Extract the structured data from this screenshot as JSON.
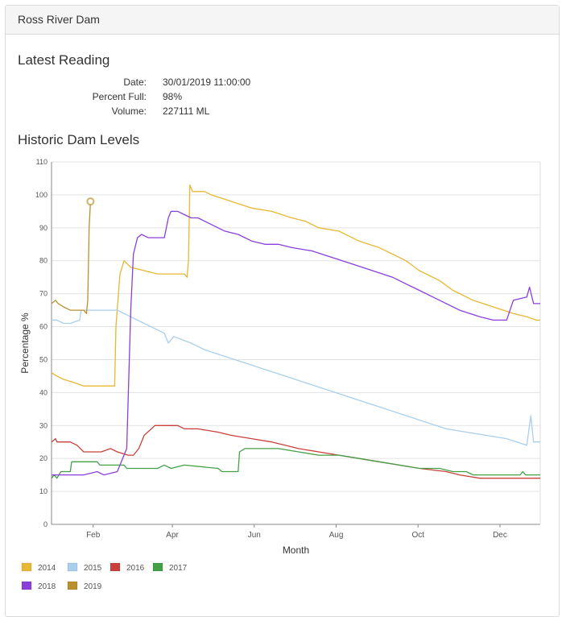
{
  "panel": {
    "title": "Ross River Dam"
  },
  "latest": {
    "heading": "Latest Reading",
    "rows": [
      {
        "label": "Date:",
        "value": "30/01/2019 11:00:00"
      },
      {
        "label": "Percent Full:",
        "value": "98%"
      },
      {
        "label": "Volume:",
        "value": "227111 ML"
      }
    ]
  },
  "historic": {
    "heading": "Historic Dam Levels"
  },
  "chart_data": {
    "type": "line",
    "xlabel": "Month",
    "ylabel": "Percentage %",
    "ylim": [
      0,
      110
    ],
    "xlim": [
      1,
      365
    ],
    "y_ticks": [
      0,
      10,
      20,
      30,
      40,
      50,
      60,
      70,
      80,
      90,
      100,
      110
    ],
    "x_ticks": [
      {
        "label": "Feb",
        "day": 32
      },
      {
        "label": "Apr",
        "day": 91
      },
      {
        "label": "Jun",
        "day": 152
      },
      {
        "label": "Aug",
        "day": 213
      },
      {
        "label": "Oct",
        "day": 274
      },
      {
        "label": "Dec",
        "day": 335
      }
    ],
    "grid": true,
    "legend": "bottom",
    "series": [
      {
        "name": "2014",
        "color": "#e8b731",
        "points": [
          [
            1,
            46
          ],
          [
            5,
            45
          ],
          [
            10,
            44
          ],
          [
            18,
            43
          ],
          [
            25,
            42
          ],
          [
            30,
            42
          ],
          [
            40,
            42
          ],
          [
            48,
            42
          ],
          [
            49,
            60
          ],
          [
            52,
            76
          ],
          [
            55,
            80
          ],
          [
            60,
            78
          ],
          [
            70,
            77
          ],
          [
            80,
            76
          ],
          [
            95,
            76
          ],
          [
            100,
            76
          ],
          [
            102,
            75
          ],
          [
            103,
            80
          ],
          [
            104,
            103
          ],
          [
            106,
            101
          ],
          [
            115,
            101
          ],
          [
            120,
            100
          ],
          [
            135,
            98
          ],
          [
            150,
            96
          ],
          [
            165,
            95
          ],
          [
            180,
            93
          ],
          [
            190,
            92
          ],
          [
            200,
            90
          ],
          [
            215,
            89
          ],
          [
            230,
            86
          ],
          [
            245,
            84
          ],
          [
            255,
            82
          ],
          [
            265,
            80
          ],
          [
            275,
            77
          ],
          [
            290,
            74
          ],
          [
            300,
            71
          ],
          [
            315,
            68
          ],
          [
            330,
            66
          ],
          [
            345,
            64
          ],
          [
            355,
            63
          ],
          [
            362,
            62
          ],
          [
            365,
            62
          ]
        ]
      },
      {
        "name": "2015",
        "color": "#a8cfeb",
        "points": [
          [
            1,
            62
          ],
          [
            5,
            62
          ],
          [
            10,
            61
          ],
          [
            15,
            61
          ],
          [
            22,
            62
          ],
          [
            23,
            65
          ],
          [
            30,
            65
          ],
          [
            40,
            65
          ],
          [
            50,
            65
          ],
          [
            55,
            64
          ],
          [
            60,
            63
          ],
          [
            70,
            61
          ],
          [
            80,
            59
          ],
          [
            85,
            58
          ],
          [
            88,
            55
          ],
          [
            92,
            57
          ],
          [
            105,
            55
          ],
          [
            115,
            53
          ],
          [
            130,
            51
          ],
          [
            145,
            49
          ],
          [
            160,
            47
          ],
          [
            175,
            45
          ],
          [
            190,
            43
          ],
          [
            205,
            41
          ],
          [
            220,
            39
          ],
          [
            235,
            37
          ],
          [
            250,
            35
          ],
          [
            265,
            33
          ],
          [
            280,
            31
          ],
          [
            295,
            29
          ],
          [
            310,
            28
          ],
          [
            325,
            27
          ],
          [
            340,
            26
          ],
          [
            355,
            24
          ],
          [
            358,
            33
          ],
          [
            360,
            25
          ],
          [
            365,
            25
          ]
        ]
      },
      {
        "name": "2016",
        "color": "#c9403b",
        "points": [
          [
            1,
            25
          ],
          [
            4,
            26
          ],
          [
            5,
            25
          ],
          [
            15,
            25
          ],
          [
            20,
            24
          ],
          [
            25,
            22
          ],
          [
            38,
            22
          ],
          [
            45,
            23
          ],
          [
            50,
            22
          ],
          [
            58,
            21
          ],
          [
            62,
            21
          ],
          [
            66,
            23
          ],
          [
            70,
            27
          ],
          [
            78,
            30
          ],
          [
            95,
            30
          ],
          [
            100,
            29
          ],
          [
            110,
            29
          ],
          [
            125,
            28
          ],
          [
            135,
            27
          ],
          [
            150,
            26
          ],
          [
            165,
            25
          ],
          [
            175,
            24
          ],
          [
            185,
            23
          ],
          [
            200,
            22
          ],
          [
            215,
            21
          ],
          [
            230,
            20
          ],
          [
            245,
            19
          ],
          [
            260,
            18
          ],
          [
            275,
            17
          ],
          [
            295,
            16
          ],
          [
            305,
            15
          ],
          [
            320,
            14
          ],
          [
            340,
            14
          ],
          [
            365,
            14
          ]
        ]
      },
      {
        "name": "2017",
        "color": "#43a047",
        "points": [
          [
            1,
            14
          ],
          [
            3,
            15
          ],
          [
            5,
            14
          ],
          [
            8,
            16
          ],
          [
            15,
            16
          ],
          [
            16,
            19
          ],
          [
            20,
            19
          ],
          [
            35,
            19
          ],
          [
            37,
            18
          ],
          [
            55,
            18
          ],
          [
            57,
            17
          ],
          [
            80,
            17
          ],
          [
            85,
            18
          ],
          [
            90,
            17
          ],
          [
            100,
            18
          ],
          [
            125,
            17
          ],
          [
            128,
            16
          ],
          [
            140,
            16
          ],
          [
            141,
            22
          ],
          [
            145,
            23
          ],
          [
            170,
            23
          ],
          [
            185,
            22
          ],
          [
            200,
            21
          ],
          [
            215,
            21
          ],
          [
            230,
            20
          ],
          [
            245,
            19
          ],
          [
            260,
            18
          ],
          [
            275,
            17
          ],
          [
            290,
            17
          ],
          [
            300,
            16
          ],
          [
            310,
            16
          ],
          [
            315,
            15
          ],
          [
            350,
            15
          ],
          [
            352,
            16
          ],
          [
            354,
            15
          ],
          [
            365,
            15
          ]
        ]
      },
      {
        "name": "2018",
        "color": "#8a3fdc",
        "points": [
          [
            1,
            15
          ],
          [
            10,
            15
          ],
          [
            25,
            15
          ],
          [
            35,
            16
          ],
          [
            40,
            15
          ],
          [
            50,
            16
          ],
          [
            57,
            23
          ],
          [
            60,
            65
          ],
          [
            62,
            82
          ],
          [
            65,
            87
          ],
          [
            68,
            88
          ],
          [
            73,
            87
          ],
          [
            80,
            87
          ],
          [
            85,
            87
          ],
          [
            88,
            93
          ],
          [
            90,
            95
          ],
          [
            95,
            95
          ],
          [
            100,
            94
          ],
          [
            105,
            93
          ],
          [
            110,
            93
          ],
          [
            115,
            92
          ],
          [
            120,
            91
          ],
          [
            130,
            89
          ],
          [
            140,
            88
          ],
          [
            150,
            86
          ],
          [
            160,
            85
          ],
          [
            170,
            85
          ],
          [
            180,
            84
          ],
          [
            195,
            83
          ],
          [
            210,
            81
          ],
          [
            225,
            79
          ],
          [
            240,
            77
          ],
          [
            255,
            75
          ],
          [
            265,
            73
          ],
          [
            275,
            71
          ],
          [
            285,
            69
          ],
          [
            295,
            67
          ],
          [
            305,
            65
          ],
          [
            320,
            63
          ],
          [
            330,
            62
          ],
          [
            340,
            62
          ],
          [
            345,
            68
          ],
          [
            355,
            69
          ],
          [
            357,
            72
          ],
          [
            360,
            67
          ],
          [
            365,
            67
          ]
        ]
      },
      {
        "name": "2019",
        "color": "#b8912e",
        "points": [
          [
            1,
            67
          ],
          [
            4,
            68
          ],
          [
            6,
            67
          ],
          [
            10,
            66
          ],
          [
            15,
            65
          ],
          [
            20,
            65
          ],
          [
            25,
            65
          ],
          [
            27,
            64
          ],
          [
            28,
            68
          ],
          [
            29,
            90
          ],
          [
            30,
            98
          ]
        ],
        "marker": [
          30,
          98
        ]
      }
    ]
  }
}
